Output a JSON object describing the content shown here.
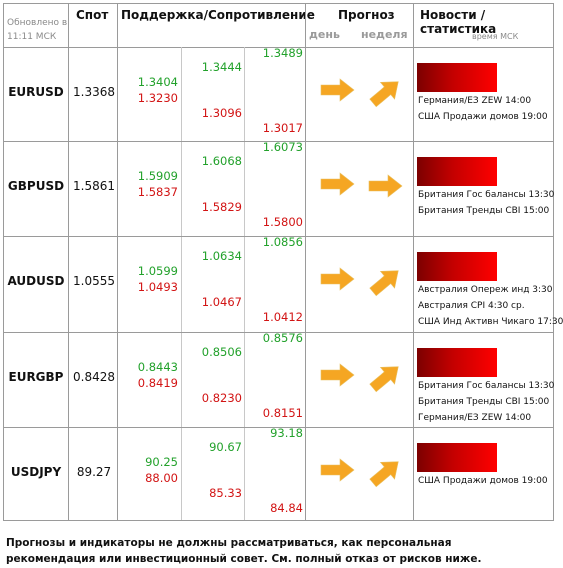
{
  "header": {
    "updated": "Обновлено в 11:11 МСК",
    "spot": "Спот",
    "levels": "Поддержка/Сопротивление",
    "forecast": "Прогноз",
    "day": "день",
    "week": "неделя",
    "news": "Новости / статистика",
    "time_label": "время МСК"
  },
  "rows": [
    {
      "symbol": "EURUSD",
      "spot": "1.3368",
      "lv_top": "1.3489",
      "lv_mid_up": "1.3444",
      "lv_sup1": "1.3404",
      "lv_res1": "1.3230",
      "lv_mid_dn": "1.3096",
      "lv_bot": "1.3017",
      "day_arrow": "right-arrow-icon",
      "week_arrow": "up-right-arrow-icon",
      "news": [
        "Германия/ЕЗ ZEW 14:00",
        "США Продажи домов 19:00"
      ]
    },
    {
      "symbol": "GBPUSD",
      "spot": "1.5861",
      "lv_top": "1.6073",
      "lv_mid_up": "1.6068",
      "lv_sup1": "1.5909",
      "lv_res1": "1.5837",
      "lv_mid_dn": "1.5829",
      "lv_bot": "1.5800",
      "day_arrow": "right-arrow-icon",
      "week_arrow": "right-arrow-icon",
      "news": [
        "Британия Гос балансы 13:30",
        "Британия Тренды CBI 15:00"
      ]
    },
    {
      "symbol": "AUDUSD",
      "spot": "1.0555",
      "lv_top": "1.0856",
      "lv_mid_up": "1.0634",
      "lv_sup1": "1.0599",
      "lv_res1": "1.0493",
      "lv_mid_dn": "1.0467",
      "lv_bot": "1.0412",
      "day_arrow": "right-arrow-icon",
      "week_arrow": "up-right-arrow-icon",
      "news": [
        "Австралия Опереж инд 3:30",
        "Австралия CPI 4:30 ср.",
        "США Инд Активн Чикаго 17:30"
      ]
    },
    {
      "symbol": "EURGBP",
      "spot": "0.8428",
      "lv_top": "0.8576",
      "lv_mid_up": "0.8506",
      "lv_sup1": "0.8443",
      "lv_res1": "0.8419",
      "lv_mid_dn": "0.8230",
      "lv_bot": "0.8151",
      "day_arrow": "right-arrow-icon",
      "week_arrow": "up-right-arrow-icon",
      "news": [
        "Британия Гос балансы 13:30",
        "Британия Тренды CBI 15:00",
        "Германия/ЕЗ ZEW 14:00"
      ]
    },
    {
      "symbol": "USDJPY",
      "spot": "89.27",
      "lv_top": "93.18",
      "lv_mid_up": "90.67",
      "lv_sup1": "90.25",
      "lv_res1": "88.00",
      "lv_mid_dn": "85.33",
      "lv_bot": "84.84",
      "day_arrow": "right-arrow-icon",
      "week_arrow": "up-right-arrow-icon",
      "news": [
        "США Продажи домов 19:00"
      ]
    }
  ],
  "disclaimer": "Прогнозы и индикаторы не должны рассматриваться, как персональная рекомендация или инвестиционный совет. См. полный отказ от рисков ниже.",
  "colors": {
    "support": "#22a12b",
    "resistance": "#d21414",
    "arrow": "#f5a623",
    "news_bar": "#e00000"
  }
}
